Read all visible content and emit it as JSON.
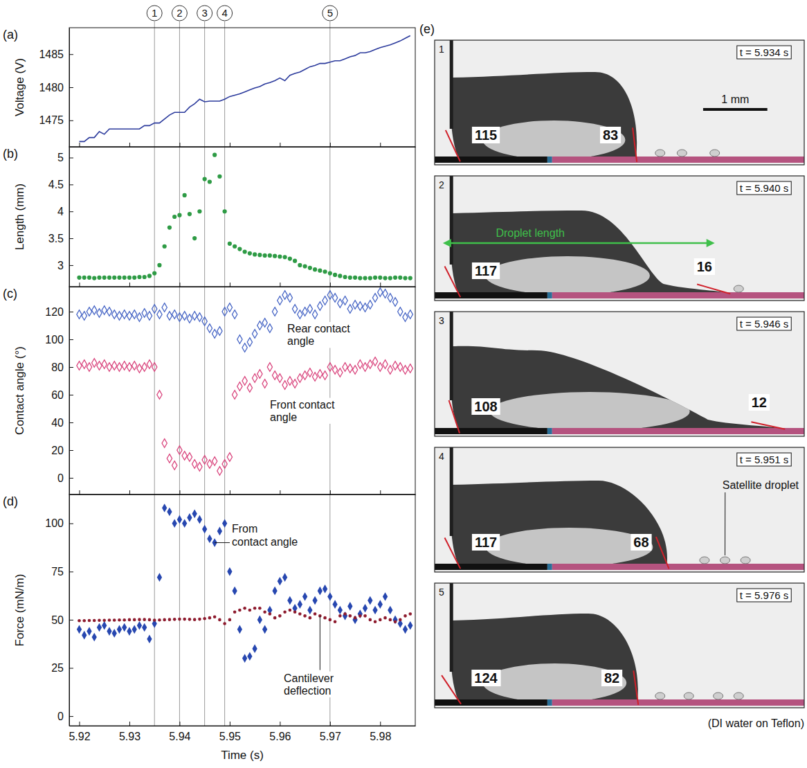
{
  "chart_data": [
    {
      "type": "line",
      "panel_label": "(a)",
      "y_label": "Voltage (V)",
      "x": [
        5.92,
        5.921,
        5.922,
        5.923,
        5.924,
        5.925,
        5.926,
        5.927,
        5.928,
        5.929,
        5.93,
        5.931,
        5.932,
        5.933,
        5.934,
        5.935,
        5.936,
        5.937,
        5.938,
        5.939,
        5.94,
        5.941,
        5.942,
        5.943,
        5.944,
        5.945,
        5.946,
        5.947,
        5.948,
        5.949,
        5.95,
        5.951,
        5.952,
        5.953,
        5.954,
        5.955,
        5.956,
        5.957,
        5.958,
        5.959,
        5.96,
        5.961,
        5.962,
        5.963,
        5.964,
        5.965,
        5.966,
        5.967,
        5.968,
        5.969,
        5.97,
        5.971,
        5.972,
        5.973,
        5.974,
        5.975,
        5.976,
        5.977,
        5.978,
        5.979,
        5.98,
        5.981,
        5.982,
        5.983,
        5.984,
        5.985,
        5.986
      ],
      "xlim": [
        5.918,
        5.987
      ],
      "xticks": [
        5.92,
        5.93,
        5.94,
        5.95,
        5.96,
        5.97,
        5.98
      ],
      "ylim": [
        1471,
        1489
      ],
      "yticks": [
        1475,
        1480,
        1485
      ],
      "tick_labels": "y",
      "series": [
        {
          "color": "#2b3a9c",
          "values": [
            1471.8,
            1471.8,
            1472.4,
            1472.4,
            1473.3,
            1472.9,
            1473.7,
            1473.7,
            1473.7,
            1473.7,
            1473.7,
            1473.7,
            1473.7,
            1474.2,
            1474.2,
            1474.6,
            1474.6,
            1475.2,
            1475.8,
            1476.2,
            1476.2,
            1476.2,
            1477.0,
            1477.5,
            1478.2,
            1477.8,
            1477.9,
            1477.9,
            1477.9,
            1478.2,
            1478.6,
            1478.8,
            1479.0,
            1479.3,
            1479.6,
            1479.9,
            1480.1,
            1480.5,
            1480.7,
            1481.0,
            1481.4,
            1481.0,
            1481.8,
            1482.1,
            1482.3,
            1482.7,
            1483.1,
            1483.3,
            1483.6,
            1483.6,
            1483.8,
            1484.0,
            1484.0,
            1484.3,
            1484.6,
            1484.8,
            1485.2,
            1485.2,
            1485.4,
            1485.7,
            1486.0,
            1486.2,
            1486.4,
            1486.7,
            1487.0,
            1487.4,
            1487.8
          ]
        }
      ]
    },
    {
      "type": "scatter",
      "panel_label": "(b)",
      "y_label": "Length (mm)",
      "x": [
        5.92,
        5.921,
        5.922,
        5.923,
        5.924,
        5.925,
        5.926,
        5.927,
        5.928,
        5.929,
        5.93,
        5.931,
        5.932,
        5.933,
        5.934,
        5.935,
        5.936,
        5.937,
        5.938,
        5.939,
        5.94,
        5.941,
        5.942,
        5.943,
        5.944,
        5.945,
        5.946,
        5.947,
        5.948,
        5.949,
        5.95,
        5.951,
        5.952,
        5.953,
        5.954,
        5.955,
        5.956,
        5.957,
        5.958,
        5.959,
        5.96,
        5.961,
        5.962,
        5.963,
        5.964,
        5.965,
        5.966,
        5.967,
        5.968,
        5.969,
        5.97,
        5.971,
        5.972,
        5.973,
        5.974,
        5.975,
        5.976,
        5.977,
        5.978,
        5.979,
        5.98,
        5.981,
        5.982,
        5.983,
        5.984,
        5.985,
        5.986
      ],
      "xlim": [
        5.918,
        5.987
      ],
      "xticks": [
        5.92,
        5.93,
        5.94,
        5.95,
        5.96,
        5.97,
        5.98
      ],
      "ylim": [
        2.6,
        5.2
      ],
      "yticks": [
        3,
        3.5,
        4,
        4.5,
        5
      ],
      "tick_labels": "y",
      "series": [
        {
          "color": "#2e9b45",
          "marker": "circle",
          "values": [
            2.77,
            2.77,
            2.77,
            2.76,
            2.77,
            2.77,
            2.77,
            2.77,
            2.77,
            2.77,
            2.77,
            2.77,
            2.78,
            2.78,
            2.8,
            2.85,
            3.0,
            3.35,
            3.7,
            3.9,
            3.93,
            4.3,
            3.95,
            3.5,
            4.0,
            4.6,
            4.55,
            5.05,
            4.65,
            4.0,
            3.4,
            3.35,
            3.3,
            3.25,
            3.22,
            3.2,
            3.19,
            3.18,
            3.18,
            3.17,
            3.16,
            3.15,
            3.12,
            3.08,
            3.0,
            2.98,
            2.95,
            2.92,
            2.9,
            2.88,
            2.85,
            2.82,
            2.8,
            2.78,
            2.77,
            2.77,
            2.76,
            2.76,
            2.76,
            2.77,
            2.77,
            2.76,
            2.76,
            2.77,
            2.77,
            2.76,
            2.76
          ]
        }
      ]
    },
    {
      "type": "scatter",
      "panel_label": "(c)",
      "y_label": "Contact angle (°)",
      "x": [
        5.92,
        5.921,
        5.922,
        5.923,
        5.924,
        5.925,
        5.926,
        5.927,
        5.928,
        5.929,
        5.93,
        5.931,
        5.932,
        5.933,
        5.934,
        5.935,
        5.936,
        5.937,
        5.938,
        5.939,
        5.94,
        5.941,
        5.942,
        5.943,
        5.944,
        5.945,
        5.946,
        5.947,
        5.948,
        5.949,
        5.95,
        5.951,
        5.952,
        5.953,
        5.954,
        5.955,
        5.956,
        5.957,
        5.958,
        5.959,
        5.96,
        5.961,
        5.962,
        5.963,
        5.964,
        5.965,
        5.966,
        5.967,
        5.968,
        5.969,
        5.97,
        5.971,
        5.972,
        5.973,
        5.974,
        5.975,
        5.976,
        5.977,
        5.978,
        5.979,
        5.98,
        5.981,
        5.982,
        5.983,
        5.984,
        5.985,
        5.986
      ],
      "xlim": [
        5.918,
        5.987
      ],
      "xticks": [
        5.92,
        5.93,
        5.94,
        5.95,
        5.96,
        5.97,
        5.98
      ],
      "ylim": [
        -12,
        138
      ],
      "yticks": [
        0,
        20,
        40,
        60,
        80,
        100,
        120
      ],
      "tick_labels": "y",
      "series": [
        {
          "name": "Rear contact angle",
          "color": "#4463c4",
          "marker": "diamond-open",
          "values": [
            118,
            117,
            120,
            121,
            119,
            121,
            120,
            118,
            117,
            118,
            117,
            118,
            116,
            119,
            117,
            122,
            118,
            123,
            117,
            118,
            116,
            117,
            115,
            117,
            116,
            113,
            108,
            104,
            106,
            120,
            123,
            118,
            100,
            94,
            98,
            104,
            110,
            112,
            108,
            120,
            128,
            132,
            130,
            122,
            118,
            120,
            122,
            118,
            124,
            128,
            132,
            130,
            126,
            128,
            122,
            125,
            124,
            123,
            125,
            130,
            134,
            133,
            130,
            127,
            120,
            116,
            118
          ]
        },
        {
          "name": "Front contact angle",
          "color": "#d9437c",
          "marker": "diamond-open",
          "values": [
            81,
            82,
            80,
            83,
            81,
            82,
            80,
            81,
            80,
            81,
            80,
            81,
            79,
            80,
            82,
            80,
            60,
            25,
            14,
            9,
            20,
            16,
            15,
            10,
            8,
            13,
            10,
            12,
            5,
            10,
            15,
            60,
            66,
            70,
            65,
            72,
            75,
            68,
            80,
            74,
            72,
            67,
            70,
            68,
            72,
            74,
            76,
            73,
            75,
            74,
            80,
            78,
            76,
            80,
            79,
            78,
            82,
            80,
            82,
            84,
            80,
            82,
            78,
            81,
            80,
            78,
            79
          ]
        }
      ]
    },
    {
      "type": "scatter",
      "panel_label": "(d)",
      "y_label": "Force (mN/m)",
      "x_label": "Time (s)",
      "x": [
        5.92,
        5.921,
        5.922,
        5.923,
        5.924,
        5.925,
        5.926,
        5.927,
        5.928,
        5.929,
        5.93,
        5.931,
        5.932,
        5.933,
        5.934,
        5.935,
        5.936,
        5.937,
        5.938,
        5.939,
        5.94,
        5.941,
        5.942,
        5.943,
        5.944,
        5.945,
        5.946,
        5.947,
        5.948,
        5.949,
        5.95,
        5.951,
        5.952,
        5.953,
        5.954,
        5.955,
        5.956,
        5.957,
        5.958,
        5.959,
        5.96,
        5.961,
        5.962,
        5.963,
        5.964,
        5.965,
        5.966,
        5.967,
        5.968,
        5.969,
        5.97,
        5.971,
        5.972,
        5.973,
        5.974,
        5.975,
        5.976,
        5.977,
        5.978,
        5.979,
        5.98,
        5.981,
        5.982,
        5.983,
        5.984,
        5.985,
        5.986
      ],
      "xlim": [
        5.918,
        5.987
      ],
      "xticks": [
        5.92,
        5.93,
        5.94,
        5.95,
        5.96,
        5.97,
        5.98
      ],
      "ylim": [
        -5,
        115
      ],
      "yticks": [
        0,
        25,
        50,
        75,
        100
      ],
      "series": [
        {
          "name": "From contact angle",
          "color": "#2747b0",
          "marker": "diamond",
          "values": [
            45,
            42,
            44,
            41,
            46,
            47,
            44,
            43,
            45,
            46,
            44,
            45,
            47,
            46,
            40,
            48,
            72,
            108,
            106,
            100,
            102,
            100,
            103,
            105,
            102,
            97,
            92,
            90,
            96,
            100,
            75,
            65,
            45,
            30,
            31,
            35,
            50,
            45,
            55,
            65,
            70,
            72,
            60,
            56,
            58,
            62,
            55,
            60,
            65,
            66,
            62,
            58,
            55,
            52,
            57,
            50,
            53,
            56,
            60,
            55,
            58,
            62,
            55,
            50,
            48,
            45,
            47
          ]
        },
        {
          "name": "Cantilever deflection",
          "color": "#8e1b2e",
          "marker": "dot",
          "values": [
            49.5,
            49.5,
            49.6,
            49.6,
            49.7,
            49.7,
            49.8,
            49.8,
            49.9,
            49.9,
            50,
            50,
            50.1,
            50.1,
            50,
            49.8,
            49.9,
            50,
            50.1,
            50.2,
            50.3,
            50.3,
            50.2,
            50.1,
            50.3,
            50.6,
            51,
            51.5,
            50,
            48,
            50,
            54,
            55,
            56,
            55,
            56,
            56,
            54,
            53,
            51,
            52,
            54,
            55,
            54,
            53,
            52,
            51,
            53,
            52,
            51,
            50,
            49,
            52,
            53,
            52,
            51,
            52,
            52,
            50,
            49,
            50,
            51,
            50,
            49,
            50,
            52,
            53
          ]
        }
      ]
    }
  ],
  "events": {
    "labels": [
      "1",
      "2",
      "3",
      "4",
      "5"
    ],
    "x": [
      5.935,
      5.94,
      5.945,
      5.949,
      5.97
    ]
  },
  "image_panel": {
    "label": "(e)",
    "caption": "(DI water on Teflon)",
    "frames": [
      {
        "number": "1",
        "time_label": "t = 5.934 s",
        "rear_angle": 115,
        "front_angle": 83,
        "scale_bar": "1 mm"
      },
      {
        "number": "2",
        "time_label": "t = 5.940 s",
        "rear_angle": 117,
        "front_angle": 16,
        "length_label": "Droplet length"
      },
      {
        "number": "3",
        "time_label": "t = 5.946 s",
        "rear_angle": 108,
        "front_angle": 12
      },
      {
        "number": "4",
        "time_label": "t = 5.951 s",
        "rear_angle": 117,
        "front_angle": 68,
        "satellite_label": "Satellite droplet"
      },
      {
        "number": "5",
        "time_label": "t = 5.976 s",
        "rear_angle": 124,
        "front_angle": 82
      }
    ]
  }
}
